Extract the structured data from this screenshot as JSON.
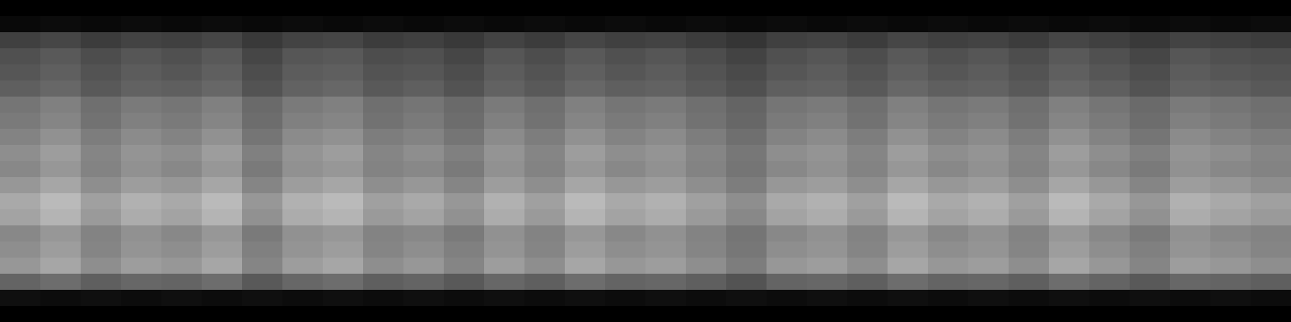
{
  "chart_data": {
    "type": "heatmap",
    "tick_labels": false,
    "color": "Greys",
    "zlim": [
      0,
      1
    ],
    "cells": [
      [
        0,
        0,
        0,
        0,
        0,
        0,
        0,
        0,
        0,
        0,
        0,
        0,
        0,
        0,
        0,
        0,
        0,
        0,
        0,
        0,
        0,
        0,
        0,
        0,
        0,
        0,
        0,
        0,
        0,
        0,
        0,
        0
      ],
      [
        0.03,
        0.04,
        0.03,
        0.04,
        0.03,
        0.04,
        0.03,
        0.04,
        0.03,
        0.04,
        0.03,
        0.04,
        0.03,
        0.04,
        0.03,
        0.04,
        0.03,
        0.04,
        0.03,
        0.04,
        0.03,
        0.04,
        0.03,
        0.04,
        0.03,
        0.04,
        0.03,
        0.04,
        0.03,
        0.04,
        0.03,
        0.04
      ],
      [
        0.2,
        0.22,
        0.19,
        0.21,
        0.2,
        0.22,
        0.18,
        0.21,
        0.22,
        0.19,
        0.2,
        0.18,
        0.21,
        0.19,
        0.22,
        0.2,
        0.21,
        0.19,
        0.17,
        0.2,
        0.21,
        0.19,
        0.22,
        0.2,
        0.21,
        0.19,
        0.22,
        0.2,
        0.18,
        0.21,
        0.2,
        0.19
      ],
      [
        0.25,
        0.28,
        0.24,
        0.27,
        0.25,
        0.28,
        0.22,
        0.27,
        0.28,
        0.24,
        0.25,
        0.22,
        0.27,
        0.24,
        0.28,
        0.25,
        0.27,
        0.24,
        0.21,
        0.25,
        0.27,
        0.24,
        0.28,
        0.25,
        0.27,
        0.24,
        0.28,
        0.25,
        0.22,
        0.27,
        0.25,
        0.24
      ],
      [
        0.27,
        0.3,
        0.26,
        0.29,
        0.27,
        0.3,
        0.24,
        0.29,
        0.3,
        0.26,
        0.27,
        0.24,
        0.29,
        0.26,
        0.3,
        0.27,
        0.29,
        0.26,
        0.23,
        0.27,
        0.29,
        0.26,
        0.3,
        0.27,
        0.29,
        0.26,
        0.3,
        0.27,
        0.24,
        0.29,
        0.27,
        0.26
      ],
      [
        0.3,
        0.33,
        0.28,
        0.31,
        0.3,
        0.33,
        0.26,
        0.31,
        0.33,
        0.28,
        0.3,
        0.26,
        0.31,
        0.28,
        0.33,
        0.3,
        0.31,
        0.28,
        0.25,
        0.3,
        0.31,
        0.28,
        0.33,
        0.3,
        0.31,
        0.28,
        0.33,
        0.3,
        0.26,
        0.31,
        0.3,
        0.28
      ],
      [
        0.38,
        0.42,
        0.36,
        0.4,
        0.38,
        0.42,
        0.34,
        0.4,
        0.42,
        0.36,
        0.38,
        0.34,
        0.4,
        0.36,
        0.42,
        0.38,
        0.4,
        0.36,
        0.32,
        0.38,
        0.4,
        0.36,
        0.42,
        0.38,
        0.4,
        0.36,
        0.42,
        0.38,
        0.34,
        0.4,
        0.38,
        0.36
      ],
      [
        0.4,
        0.44,
        0.37,
        0.42,
        0.4,
        0.44,
        0.35,
        0.42,
        0.44,
        0.37,
        0.4,
        0.35,
        0.42,
        0.37,
        0.44,
        0.4,
        0.42,
        0.37,
        0.33,
        0.4,
        0.42,
        0.37,
        0.44,
        0.4,
        0.42,
        0.37,
        0.44,
        0.4,
        0.35,
        0.42,
        0.4,
        0.37
      ],
      [
        0.43,
        0.48,
        0.41,
        0.46,
        0.43,
        0.48,
        0.38,
        0.46,
        0.48,
        0.41,
        0.43,
        0.38,
        0.46,
        0.41,
        0.48,
        0.43,
        0.46,
        0.41,
        0.36,
        0.43,
        0.46,
        0.41,
        0.48,
        0.43,
        0.46,
        0.41,
        0.48,
        0.43,
        0.38,
        0.46,
        0.43,
        0.41
      ],
      [
        0.47,
        0.52,
        0.44,
        0.49,
        0.47,
        0.52,
        0.42,
        0.49,
        0.52,
        0.44,
        0.47,
        0.42,
        0.49,
        0.44,
        0.52,
        0.47,
        0.49,
        0.44,
        0.39,
        0.47,
        0.49,
        0.44,
        0.52,
        0.47,
        0.49,
        0.44,
        0.52,
        0.47,
        0.42,
        0.49,
        0.47,
        0.44
      ],
      [
        0.45,
        0.5,
        0.43,
        0.48,
        0.45,
        0.5,
        0.4,
        0.48,
        0.5,
        0.43,
        0.45,
        0.4,
        0.48,
        0.43,
        0.5,
        0.45,
        0.48,
        0.43,
        0.38,
        0.45,
        0.48,
        0.43,
        0.5,
        0.45,
        0.48,
        0.43,
        0.5,
        0.45,
        0.4,
        0.48,
        0.45,
        0.43
      ],
      [
        0.5,
        0.55,
        0.47,
        0.52,
        0.5,
        0.55,
        0.44,
        0.52,
        0.55,
        0.47,
        0.5,
        0.44,
        0.52,
        0.47,
        0.55,
        0.5,
        0.52,
        0.47,
        0.41,
        0.5,
        0.52,
        0.47,
        0.55,
        0.5,
        0.52,
        0.47,
        0.55,
        0.5,
        0.44,
        0.52,
        0.5,
        0.47
      ],
      [
        0.56,
        0.62,
        0.53,
        0.59,
        0.56,
        0.62,
        0.5,
        0.59,
        0.62,
        0.53,
        0.56,
        0.5,
        0.59,
        0.53,
        0.62,
        0.56,
        0.59,
        0.53,
        0.47,
        0.56,
        0.59,
        0.53,
        0.62,
        0.56,
        0.59,
        0.53,
        0.62,
        0.56,
        0.5,
        0.59,
        0.56,
        0.53
      ],
      [
        0.54,
        0.6,
        0.51,
        0.57,
        0.54,
        0.6,
        0.48,
        0.57,
        0.6,
        0.51,
        0.54,
        0.48,
        0.57,
        0.51,
        0.6,
        0.54,
        0.57,
        0.51,
        0.45,
        0.54,
        0.57,
        0.51,
        0.6,
        0.54,
        0.57,
        0.51,
        0.6,
        0.54,
        0.48,
        0.57,
        0.54,
        0.51
      ],
      [
        0.45,
        0.5,
        0.43,
        0.48,
        0.45,
        0.5,
        0.4,
        0.48,
        0.5,
        0.43,
        0.45,
        0.4,
        0.48,
        0.43,
        0.5,
        0.45,
        0.48,
        0.43,
        0.38,
        0.45,
        0.48,
        0.43,
        0.5,
        0.45,
        0.48,
        0.43,
        0.5,
        0.45,
        0.4,
        0.48,
        0.45,
        0.43
      ],
      [
        0.47,
        0.52,
        0.44,
        0.49,
        0.47,
        0.52,
        0.42,
        0.49,
        0.52,
        0.44,
        0.47,
        0.42,
        0.49,
        0.44,
        0.52,
        0.47,
        0.49,
        0.44,
        0.39,
        0.47,
        0.49,
        0.44,
        0.52,
        0.47,
        0.49,
        0.44,
        0.52,
        0.47,
        0.42,
        0.49,
        0.47,
        0.44
      ],
      [
        0.5,
        0.55,
        0.47,
        0.52,
        0.5,
        0.55,
        0.44,
        0.52,
        0.55,
        0.47,
        0.5,
        0.44,
        0.52,
        0.47,
        0.55,
        0.5,
        0.52,
        0.47,
        0.41,
        0.5,
        0.52,
        0.47,
        0.55,
        0.5,
        0.52,
        0.47,
        0.55,
        0.5,
        0.44,
        0.52,
        0.5,
        0.47
      ],
      [
        0.32,
        0.35,
        0.3,
        0.33,
        0.32,
        0.35,
        0.28,
        0.33,
        0.35,
        0.3,
        0.32,
        0.28,
        0.33,
        0.3,
        0.35,
        0.32,
        0.33,
        0.3,
        0.26,
        0.32,
        0.33,
        0.3,
        0.35,
        0.32,
        0.33,
        0.3,
        0.35,
        0.32,
        0.28,
        0.33,
        0.32,
        0.3
      ],
      [
        0.05,
        0.04,
        0.05,
        0.04,
        0.05,
        0.04,
        0.05,
        0.04,
        0.05,
        0.04,
        0.05,
        0.04,
        0.05,
        0.04,
        0.05,
        0.04,
        0.05,
        0.04,
        0.05,
        0.04,
        0.05,
        0.04,
        0.05,
        0.04,
        0.05,
        0.04,
        0.05,
        0.04,
        0.05,
        0.04,
        0.05,
        0.04
      ],
      [
        0,
        0,
        0,
        0,
        0,
        0,
        0,
        0,
        0,
        0,
        0,
        0,
        0,
        0,
        0,
        0,
        0,
        0,
        0,
        0,
        0,
        0,
        0,
        0,
        0,
        0,
        0,
        0,
        0,
        0,
        0,
        0
      ]
    ]
  }
}
